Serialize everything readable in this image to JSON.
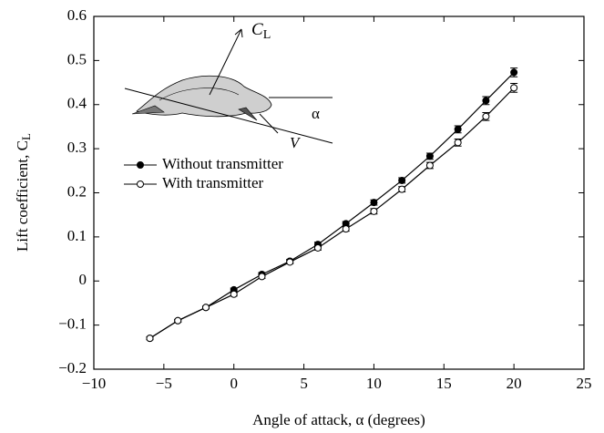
{
  "chart_data": {
    "type": "line",
    "x_label": "Angle of attack, α (degrees)",
    "y_label": {
      "main": "Lift coefficient, C",
      "sub": "L"
    },
    "annotations": {
      "lift": {
        "main": "C",
        "sub": "L"
      },
      "alpha": "α",
      "velocity": "V"
    },
    "x": [
      -6,
      -4,
      -2,
      0,
      2,
      4,
      6,
      8,
      10,
      12,
      14,
      16,
      18,
      20
    ],
    "series": [
      {
        "name": "Without transmitter",
        "color": "#000000",
        "marker": "filled",
        "values": [
          -0.13,
          -0.09,
          -0.06,
          -0.02,
          0.015,
          0.045,
          0.083,
          0.13,
          0.178,
          0.228,
          0.283,
          0.344,
          0.409,
          0.473
        ],
        "errors": [
          0.003,
          0.003,
          0.003,
          0.004,
          0.004,
          0.004,
          0.005,
          0.005,
          0.006,
          0.006,
          0.007,
          0.008,
          0.009,
          0.01
        ]
      },
      {
        "name": "With transmitter",
        "color": "#000000",
        "marker": "open",
        "values": [
          -0.13,
          -0.09,
          -0.06,
          -0.03,
          0.01,
          0.043,
          0.075,
          0.118,
          0.158,
          0.208,
          0.262,
          0.314,
          0.373,
          0.438
        ],
        "errors": [
          0.003,
          0.003,
          0.003,
          0.004,
          0.004,
          0.004,
          0.005,
          0.005,
          0.006,
          0.006,
          0.007,
          0.008,
          0.009,
          0.01
        ]
      }
    ],
    "xlim": [
      -10,
      25
    ],
    "xticks": [
      {
        "value": -10,
        "label": "−10"
      },
      {
        "value": -5,
        "label": "−5"
      },
      0,
      5,
      10,
      15,
      20,
      25
    ],
    "ylim": [
      -0.2,
      0.6
    ],
    "yticks": [
      {
        "value": -0.2,
        "label": "−0.2"
      },
      {
        "value": -0.1,
        "label": "−0.1"
      },
      0,
      0.1,
      0.2,
      0.3,
      0.4,
      0.5,
      0.6
    ],
    "legend": "upper left"
  }
}
